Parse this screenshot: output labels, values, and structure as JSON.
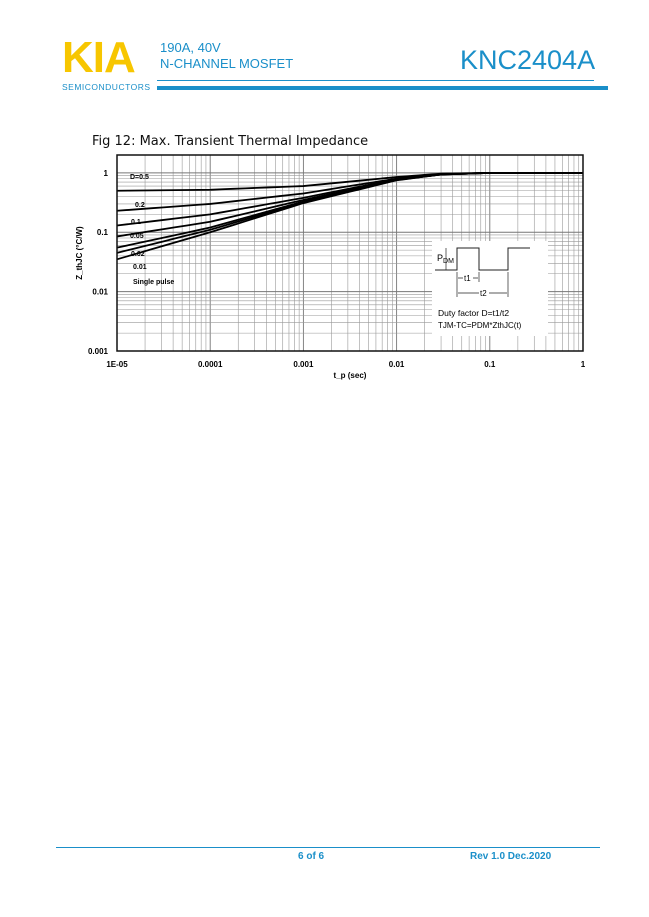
{
  "header": {
    "logo_text": "KIA",
    "logo_subtext": "SEMICONDUCTORS",
    "rating": "190A, 40V",
    "device_type": "N-CHANNEL MOSFET",
    "part_number": "KNC2404A",
    "brand_color": "#1a8fc9",
    "logo_color": "#f7c600"
  },
  "figure": {
    "title": "Fig 12: Max. Transient Thermal Impedance"
  },
  "chart_data": {
    "type": "line",
    "title": "Fig 12: Max. Transient Thermal Impedance",
    "xlabel": "t_p (sec)",
    "ylabel": "Z_thJC (°C/W)",
    "xscale": "log",
    "yscale": "log",
    "xlim": [
      1e-05,
      1
    ],
    "ylim": [
      0.001,
      2
    ],
    "grid": true,
    "x_ticks": [
      "1E-05",
      "0.0001",
      "0.001",
      "0.01",
      "0.1",
      "1"
    ],
    "y_ticks": [
      "0.001",
      "0.01",
      "0.1",
      "1"
    ],
    "x": [
      1e-05,
      0.0001,
      0.001,
      0.01,
      0.03,
      0.1,
      1
    ],
    "series": [
      {
        "name": "D=0.5",
        "values": [
          0.5,
          0.52,
          0.6,
          0.85,
          0.97,
          1,
          1
        ]
      },
      {
        "name": "0.2",
        "values": [
          0.23,
          0.3,
          0.45,
          0.8,
          0.95,
          1,
          1
        ]
      },
      {
        "name": "0.1",
        "values": [
          0.13,
          0.2,
          0.38,
          0.78,
          0.95,
          1,
          1
        ]
      },
      {
        "name": "0.05",
        "values": [
          0.085,
          0.15,
          0.35,
          0.77,
          0.94,
          1,
          1
        ]
      },
      {
        "name": "0.02",
        "values": [
          0.055,
          0.12,
          0.33,
          0.76,
          0.94,
          1,
          1
        ]
      },
      {
        "name": "0.01",
        "values": [
          0.045,
          0.11,
          0.32,
          0.76,
          0.94,
          1,
          1
        ]
      },
      {
        "name": "Single pulse",
        "values": [
          0.035,
          0.1,
          0.31,
          0.75,
          0.94,
          1,
          1
        ]
      }
    ],
    "inset": {
      "pdm_label": "P",
      "pdm_sub": "DM",
      "t1_label": "t1",
      "t2_label": "t2",
      "duty_text": "Duty factor D=t1/t2",
      "formula": "TJM-TC=PDM*ZthJC(t)"
    }
  },
  "footer": {
    "page": "6 of 6",
    "revision": "Rev 1.0 Dec.2020"
  }
}
